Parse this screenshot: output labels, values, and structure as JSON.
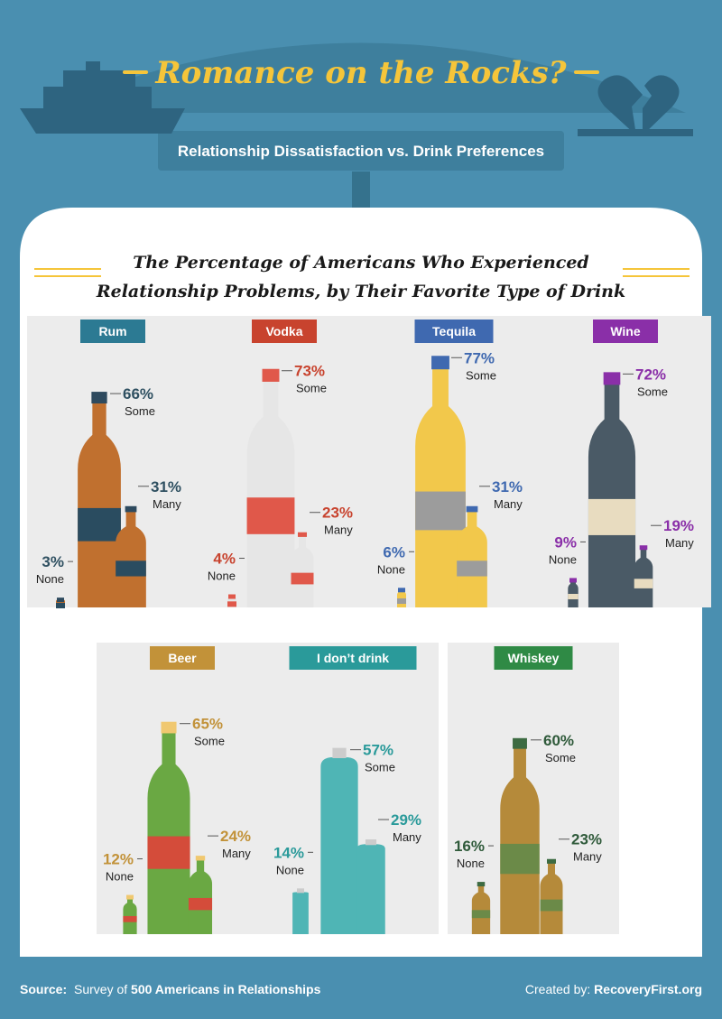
{
  "header": {
    "title": "Romance on the Rocks?",
    "subtitle": "Relationship Dissatisfaction vs. Drink Preferences"
  },
  "chart_heading": {
    "line1": "The Percentage of Americans Who Experienced",
    "line2": "Relationship Problems, by Their Favorite Type of Drink"
  },
  "footer": {
    "source_label": "Source:",
    "source_pre": "Survey of ",
    "source_bold": "500 Americans in Relationships",
    "created_label": "Created by: ",
    "created_site": "RecoveryFirst.org"
  },
  "colors": {
    "background": "#4a8fb0",
    "banner": "#3e7f9d",
    "title_yellow": "#f5c53a",
    "panel": "#ffffff",
    "card": "#ececec"
  },
  "chart_data": {
    "type": "bar",
    "title": "The Percentage of Americans Who Experienced Relationship Problems, by Their Favorite Type of Drink",
    "series_labels": [
      "Some",
      "Many",
      "None"
    ],
    "drinks": [
      {
        "name": "Rum",
        "color": "#2c7a93",
        "some": 66,
        "many": 31,
        "none": 3
      },
      {
        "name": "Vodka",
        "color": "#c8432e",
        "some": 73,
        "many": 23,
        "none": 4
      },
      {
        "name": "Tequila",
        "color": "#3f69b0",
        "some": 77,
        "many": 31,
        "none": 6
      },
      {
        "name": "Wine",
        "color": "#8a2fa8",
        "some": 72,
        "many": 19,
        "none": 9
      },
      {
        "name": "Beer",
        "color": "#c29239",
        "some": 65,
        "many": 24,
        "none": 12
      },
      {
        "name": "I don’t drink",
        "color": "#2a9a9a",
        "some": 57,
        "many": 29,
        "none": 14
      },
      {
        "name": "Whiskey",
        "color": "#2f8a45",
        "some": 60,
        "many": 23,
        "none": 16
      }
    ]
  }
}
